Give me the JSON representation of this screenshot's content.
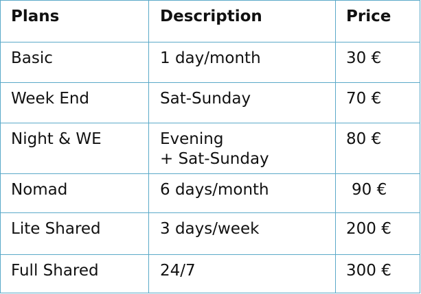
{
  "table": {
    "headers": {
      "plan": "Plans",
      "description": "Description",
      "price": "Price"
    },
    "rows": [
      {
        "plan": "Basic",
        "description": [
          "1 day/month"
        ],
        "price": "30 €"
      },
      {
        "plan": "Week End",
        "description": [
          "Sat-Sunday"
        ],
        "price": "70 €"
      },
      {
        "plan": "Night & WE",
        "description": [
          "Evening",
          "+ Sat-Sunday"
        ],
        "price": "80 €"
      },
      {
        "plan": "Nomad",
        "description": [
          "6 days/month"
        ],
        "price": "90 €"
      },
      {
        "plan": "Lite Shared",
        "description": [
          "3 days/week"
        ],
        "price": "200 €"
      },
      {
        "plan": "Full Shared",
        "description": [
          "24/7"
        ],
        "price": "300 €"
      }
    ]
  },
  "colors": {
    "border": "#5aa9c8",
    "text": "#111111",
    "background": "#ffffff"
  }
}
